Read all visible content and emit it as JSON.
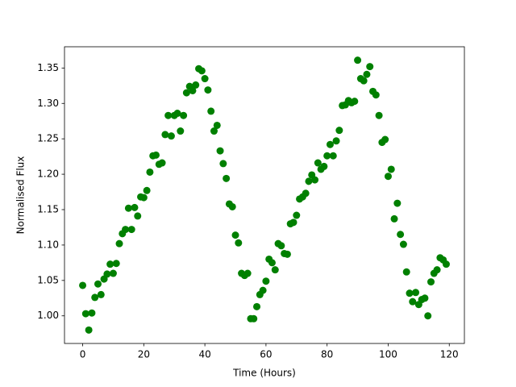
{
  "chart_data": {
    "type": "scatter",
    "x_label": "Time (Hours)",
    "y_label": "Normalised Flux",
    "color": "#008000",
    "x": [
      0,
      1,
      2,
      3,
      4,
      5,
      6,
      7,
      8,
      9,
      10,
      11,
      12,
      13,
      14,
      15,
      16,
      17,
      18,
      19,
      20,
      21,
      22,
      23,
      24,
      25,
      26,
      27,
      28,
      29,
      30,
      31,
      32,
      33,
      34,
      35,
      36,
      37,
      38,
      39,
      40,
      41,
      42,
      43,
      44,
      45,
      46,
      47,
      48,
      49,
      50,
      51,
      52,
      53,
      54,
      55,
      56,
      57,
      58,
      59,
      60,
      61,
      62,
      63,
      64,
      65,
      66,
      67,
      68,
      69,
      70,
      71,
      72,
      73,
      74,
      75,
      76,
      77,
      78,
      79,
      80,
      81,
      82,
      83,
      84,
      85,
      86,
      87,
      88,
      89,
      90,
      91,
      92,
      93,
      94,
      95,
      96,
      97,
      98,
      99,
      100,
      101,
      102,
      103,
      104,
      105,
      106,
      107,
      108,
      109,
      110,
      111,
      112,
      113,
      114,
      115,
      116,
      117,
      118,
      119
    ],
    "y": [
      1.043,
      1.003,
      0.98,
      1.004,
      1.026,
      1.045,
      1.03,
      1.052,
      1.059,
      1.073,
      1.06,
      1.074,
      1.102,
      1.116,
      1.122,
      1.152,
      1.122,
      1.153,
      1.141,
      1.168,
      1.167,
      1.177,
      1.203,
      1.226,
      1.227,
      1.214,
      1.216,
      1.256,
      1.283,
      1.254,
      1.283,
      1.286,
      1.261,
      1.283,
      1.315,
      1.324,
      1.318,
      1.326,
      1.349,
      1.346,
      1.335,
      1.319,
      1.289,
      1.261,
      1.269,
      1.233,
      1.215,
      1.194,
      1.158,
      1.154,
      1.114,
      1.103,
      1.06,
      1.057,
      1.06,
      0.996,
      0.996,
      1.013,
      1.03,
      1.036,
      1.049,
      1.08,
      1.075,
      1.065,
      1.102,
      1.099,
      1.088,
      1.087,
      1.13,
      1.132,
      1.142,
      1.165,
      1.168,
      1.173,
      1.19,
      1.199,
      1.192,
      1.216,
      1.207,
      1.211,
      1.226,
      1.242,
      1.226,
      1.247,
      1.262,
      1.297,
      1.298,
      1.304,
      1.301,
      1.303,
      1.361,
      1.335,
      1.332,
      1.341,
      1.352,
      1.317,
      1.312,
      1.283,
      1.245,
      1.249,
      1.197,
      1.207,
      1.137,
      1.159,
      1.115,
      1.101,
      1.062,
      1.032,
      1.02,
      1.033,
      1.016,
      1.023,
      1.025,
      1.0,
      1.048,
      1.06,
      1.065,
      1.082,
      1.079,
      1.073
    ],
    "xlim": [
      -5.95,
      124.95
    ],
    "ylim": [
      0.961,
      1.38
    ],
    "xticks": [
      0,
      20,
      40,
      60,
      80,
      100,
      120
    ],
    "yticks": [
      {
        "value": 1.0,
        "label": "1.00"
      },
      {
        "value": 1.05,
        "label": "1.05"
      },
      {
        "value": 1.1,
        "label": "1.10"
      },
      {
        "value": 1.15,
        "label": "1.15"
      },
      {
        "value": 1.2,
        "label": "1.20"
      },
      {
        "value": 1.25,
        "label": "1.25"
      },
      {
        "value": 1.3,
        "label": "1.30"
      },
      {
        "value": 1.35,
        "label": "1.35"
      }
    ]
  }
}
